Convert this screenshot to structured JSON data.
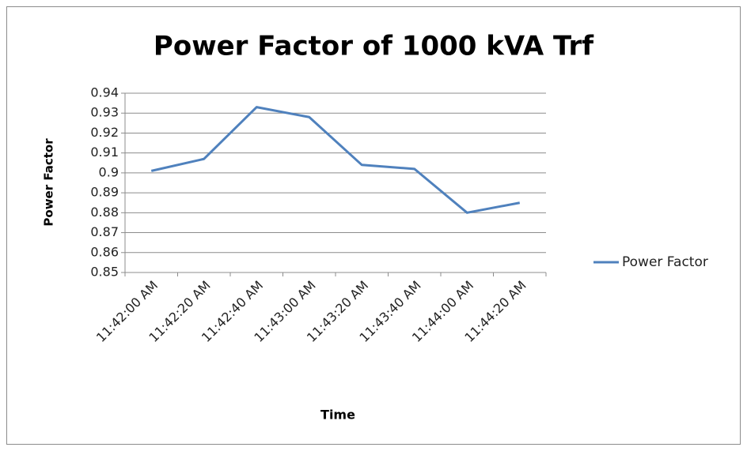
{
  "chart_data": {
    "type": "line",
    "title": "Power Factor of 1000 kVA Trf",
    "x_label": "Time",
    "y_label": "Power Factor",
    "categories": [
      "11:42:00 AM",
      "11:42:20 AM",
      "11:42:40 AM",
      "11:43:00 AM",
      "11:43:20 AM",
      "11:43:40 AM",
      "11:44:00 AM",
      "11:44:20 AM"
    ],
    "series": [
      {
        "name": "Power Factor",
        "color": "#4f81bd",
        "values": [
          0.901,
          0.907,
          0.933,
          0.928,
          0.904,
          0.902,
          0.88,
          0.885
        ]
      }
    ],
    "ylim": [
      0.85,
      0.94
    ],
    "yticks": [
      0.85,
      0.86,
      0.87,
      0.88,
      0.89,
      0.9,
      0.91,
      0.92,
      0.93,
      0.94
    ],
    "grid": true,
    "legend": "right"
  }
}
